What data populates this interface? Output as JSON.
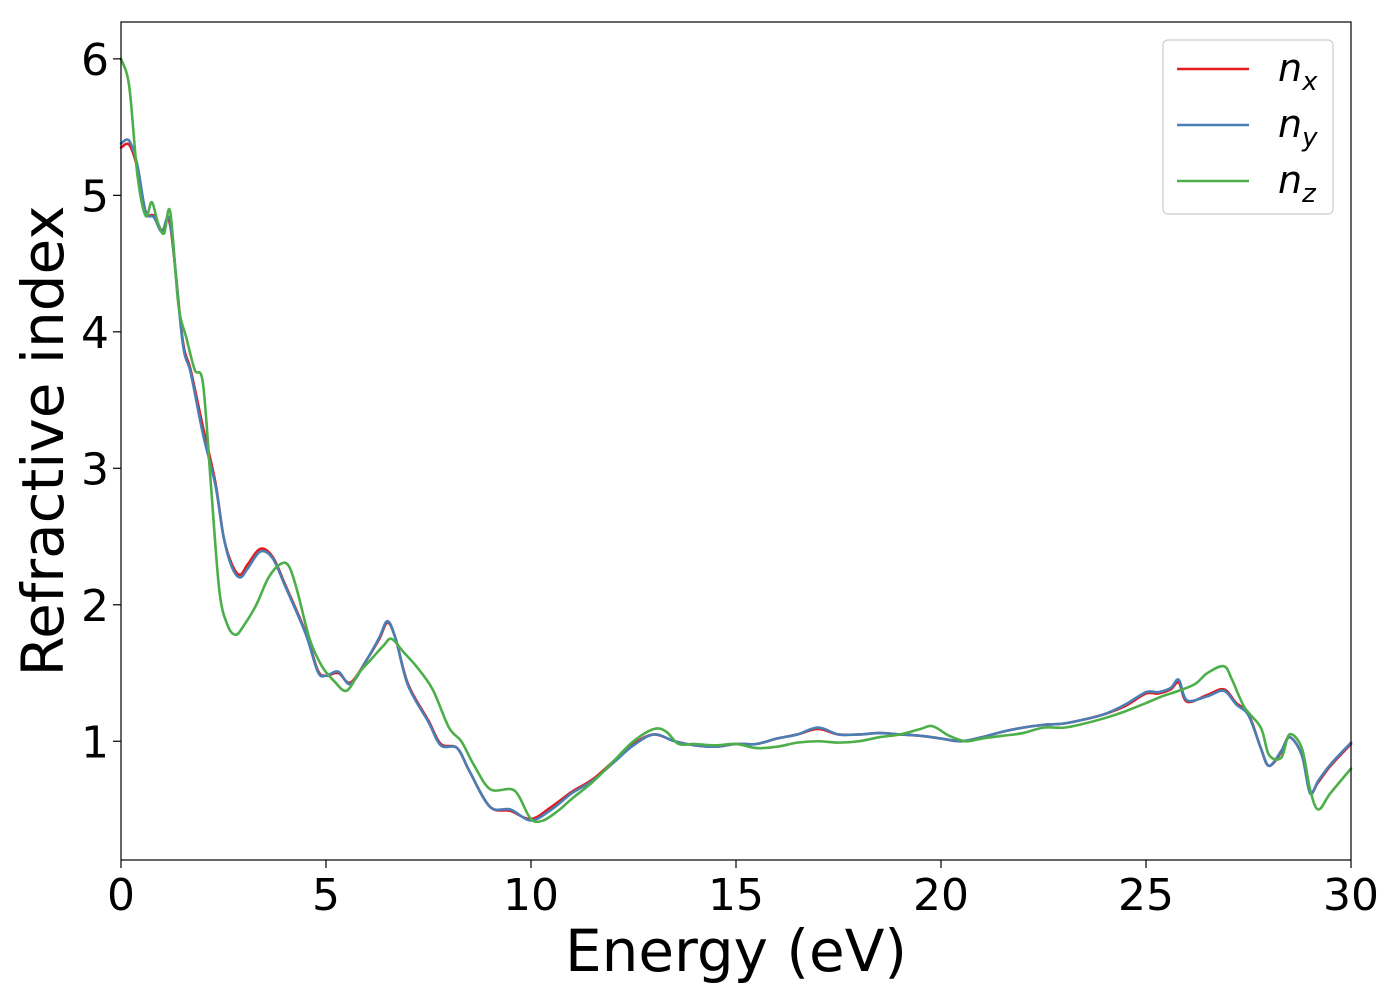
{
  "chart_data": {
    "type": "line",
    "title": "",
    "xlabel": "Energy (eV)",
    "ylabel": "Refractive index",
    "xlim": [
      0,
      30
    ],
    "ylim": [
      0.13,
      6.27
    ],
    "xticks": [
      0,
      5,
      10,
      15,
      20,
      25,
      30
    ],
    "yticks": [
      1,
      2,
      3,
      4,
      5,
      6
    ],
    "grid": false,
    "legend_position": "top-right",
    "series": [
      {
        "name": "n",
        "subscript": "x",
        "color": "#e41a1c",
        "x": [
          0,
          0.2,
          0.4,
          0.6,
          0.8,
          1.0,
          1.2,
          1.5,
          1.7,
          2.0,
          2.3,
          2.5,
          2.7,
          2.9,
          3.1,
          3.4,
          3.7,
          4.0,
          4.5,
          4.8,
          5.0,
          5.3,
          5.6,
          6.0,
          6.3,
          6.5,
          6.7,
          7.0,
          7.5,
          7.8,
          8.2,
          8.5,
          9.0,
          9.5,
          10.0,
          10.5,
          11.0,
          11.5,
          12.0,
          12.5,
          13.0,
          13.5,
          14.0,
          14.5,
          15.0,
          15.5,
          16.0,
          16.5,
          17.0,
          17.5,
          18.0,
          18.5,
          19.0,
          19.5,
          20.0,
          20.5,
          21.0,
          21.5,
          22.0,
          22.5,
          23.0,
          23.5,
          24.0,
          24.5,
          25.0,
          25.3,
          25.6,
          25.8,
          26.0,
          26.5,
          26.9,
          27.2,
          27.5,
          27.8,
          28.0,
          28.3,
          28.5,
          28.8,
          29.0,
          29.2,
          29.5,
          30.0
        ],
        "y": [
          5.35,
          5.37,
          5.2,
          4.88,
          4.85,
          4.74,
          4.78,
          3.95,
          3.72,
          3.3,
          2.9,
          2.5,
          2.3,
          2.22,
          2.3,
          2.41,
          2.35,
          2.15,
          1.8,
          1.52,
          1.48,
          1.5,
          1.43,
          1.6,
          1.75,
          1.87,
          1.75,
          1.42,
          1.15,
          0.98,
          0.95,
          0.78,
          0.52,
          0.49,
          0.43,
          0.52,
          0.63,
          0.72,
          0.85,
          0.98,
          1.05,
          1.0,
          0.97,
          0.96,
          0.98,
          0.98,
          1.02,
          1.05,
          1.09,
          1.05,
          1.05,
          1.06,
          1.05,
          1.04,
          1.02,
          1.0,
          1.03,
          1.07,
          1.1,
          1.12,
          1.13,
          1.16,
          1.2,
          1.26,
          1.35,
          1.35,
          1.38,
          1.43,
          1.29,
          1.34,
          1.38,
          1.28,
          1.2,
          0.95,
          0.82,
          0.92,
          1.03,
          0.9,
          0.63,
          0.7,
          0.82,
          0.98
        ]
      },
      {
        "name": "n",
        "subscript": "y",
        "color": "#4a7fb5",
        "x": [
          0,
          0.2,
          0.4,
          0.6,
          0.8,
          1.0,
          1.2,
          1.5,
          1.7,
          2.0,
          2.3,
          2.5,
          2.7,
          2.9,
          3.1,
          3.4,
          3.7,
          4.0,
          4.5,
          4.8,
          5.0,
          5.3,
          5.6,
          6.0,
          6.3,
          6.5,
          6.7,
          7.0,
          7.5,
          7.8,
          8.2,
          8.5,
          9.0,
          9.5,
          10.0,
          10.5,
          11.0,
          11.5,
          12.0,
          12.5,
          13.0,
          13.5,
          14.0,
          14.5,
          15.0,
          15.5,
          16.0,
          16.5,
          17.0,
          17.5,
          18.0,
          18.5,
          19.0,
          19.5,
          20.0,
          20.5,
          21.0,
          21.5,
          22.0,
          22.5,
          23.0,
          23.5,
          24.0,
          24.5,
          25.0,
          25.3,
          25.6,
          25.8,
          26.0,
          26.5,
          26.9,
          27.2,
          27.5,
          27.8,
          28.0,
          28.3,
          28.5,
          28.8,
          29.0,
          29.2,
          29.5,
          30.0
        ],
        "y": [
          5.38,
          5.4,
          5.22,
          4.88,
          4.84,
          4.73,
          4.8,
          3.93,
          3.7,
          3.25,
          2.88,
          2.5,
          2.28,
          2.2,
          2.27,
          2.39,
          2.34,
          2.14,
          1.79,
          1.51,
          1.48,
          1.51,
          1.42,
          1.6,
          1.76,
          1.88,
          1.75,
          1.41,
          1.14,
          0.97,
          0.95,
          0.78,
          0.52,
          0.5,
          0.42,
          0.5,
          0.62,
          0.71,
          0.84,
          0.97,
          1.05,
          1.0,
          0.97,
          0.96,
          0.98,
          0.98,
          1.02,
          1.05,
          1.1,
          1.05,
          1.05,
          1.06,
          1.05,
          1.04,
          1.02,
          1.0,
          1.03,
          1.07,
          1.1,
          1.12,
          1.13,
          1.16,
          1.2,
          1.27,
          1.36,
          1.36,
          1.39,
          1.45,
          1.3,
          1.33,
          1.37,
          1.27,
          1.19,
          0.95,
          0.82,
          0.93,
          1.03,
          0.9,
          0.62,
          0.71,
          0.83,
          0.99
        ]
      },
      {
        "name": "n",
        "subscript": "z",
        "color": "#4daf4a",
        "x": [
          0,
          0.2,
          0.4,
          0.6,
          0.75,
          0.9,
          1.05,
          1.2,
          1.4,
          1.6,
          1.8,
          2.0,
          2.2,
          2.4,
          2.6,
          2.8,
          3.0,
          3.3,
          3.6,
          3.9,
          4.1,
          4.3,
          4.6,
          4.9,
          5.2,
          5.5,
          5.8,
          6.1,
          6.4,
          6.6,
          6.9,
          7.2,
          7.6,
          8.0,
          8.3,
          8.6,
          9.0,
          9.5,
          9.7,
          10.0,
          10.3,
          10.7,
          11.0,
          11.5,
          12.0,
          12.5,
          13.0,
          13.3,
          13.6,
          14.0,
          14.5,
          15.0,
          15.5,
          16.0,
          16.5,
          17.0,
          17.5,
          18.0,
          18.5,
          19.0,
          19.5,
          19.8,
          20.2,
          20.6,
          21.0,
          21.5,
          22.0,
          22.5,
          23.0,
          23.5,
          24.0,
          24.5,
          25.0,
          25.4,
          25.8,
          26.2,
          26.5,
          26.9,
          27.1,
          27.4,
          27.8,
          28.0,
          28.3,
          28.5,
          28.8,
          29.0,
          29.2,
          29.5,
          30.0
        ],
        "y": [
          6.0,
          5.8,
          5.15,
          4.85,
          4.95,
          4.8,
          4.72,
          4.88,
          4.2,
          3.95,
          3.72,
          3.62,
          2.85,
          2.1,
          1.85,
          1.78,
          1.85,
          2.0,
          2.2,
          2.3,
          2.28,
          2.1,
          1.75,
          1.55,
          1.44,
          1.37,
          1.5,
          1.6,
          1.7,
          1.75,
          1.65,
          1.55,
          1.38,
          1.1,
          1.0,
          0.83,
          0.65,
          0.65,
          0.6,
          0.43,
          0.42,
          0.5,
          0.58,
          0.7,
          0.85,
          1.0,
          1.09,
          1.07,
          0.98,
          0.98,
          0.97,
          0.98,
          0.95,
          0.96,
          0.99,
          1.0,
          0.99,
          1.0,
          1.03,
          1.05,
          1.09,
          1.11,
          1.04,
          1.0,
          1.02,
          1.04,
          1.06,
          1.1,
          1.1,
          1.13,
          1.17,
          1.22,
          1.28,
          1.33,
          1.37,
          1.42,
          1.5,
          1.55,
          1.45,
          1.25,
          1.1,
          0.9,
          0.88,
          1.05,
          0.95,
          0.65,
          0.5,
          0.62,
          0.8
        ]
      }
    ]
  }
}
